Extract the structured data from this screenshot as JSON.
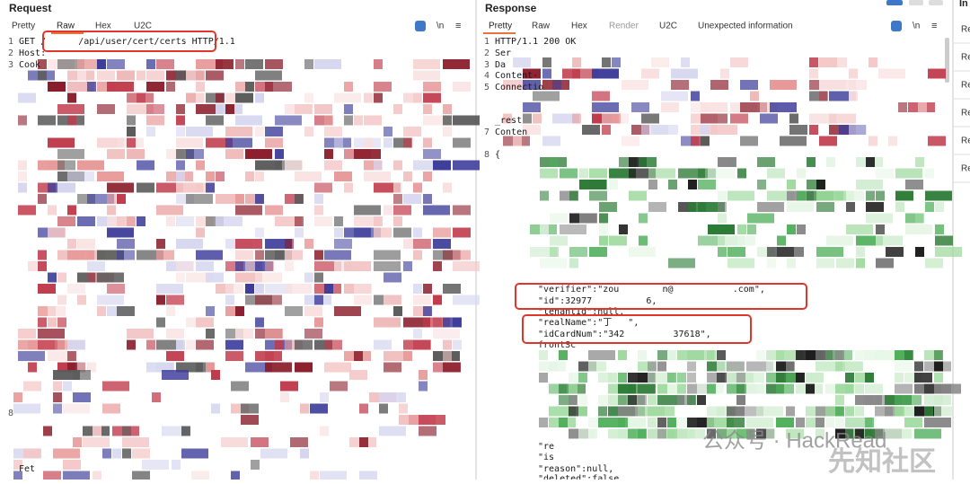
{
  "request": {
    "title": "Request",
    "tabs": [
      "Pretty",
      "Raw",
      "Hex",
      "U2C"
    ],
    "active_tab": 1,
    "lines": [
      {
        "n": "1",
        "text": "GET /      /api/user/cert/certs HTTP/1.1"
      },
      {
        "n": "2",
        "text": "Host:"
      },
      {
        "n": "3",
        "text": "Cook"
      },
      {
        "n": "8",
        "text": ""
      },
      {
        "text": "Fet"
      }
    ]
  },
  "response": {
    "title": "Response",
    "tabs": [
      "Pretty",
      "Raw",
      "Hex",
      "Render",
      "U2C",
      "Unexpected information"
    ],
    "active_tab": 0,
    "lines": [
      {
        "n": "1",
        "text": "HTTP/1.1 200 OK"
      },
      {
        "n": "2",
        "text": "Ser"
      },
      {
        "n": "3",
        "text": "Da"
      },
      {
        "n": "4",
        "text": "Content-"
      },
      {
        "n": "5",
        "text": "Connectio"
      },
      {
        "text": "_rest"
      },
      {
        "n": "7",
        "text": "Conten"
      },
      {
        "n": "8",
        "text": "{"
      },
      {
        "text": "\"verifier\":\"zou        n@           .com\","
      },
      {
        "text": "\"id\":32977          6,"
      },
      {
        "text": "\"tenantId\":null,"
      },
      {
        "text": "\"realName\":\"丁   \","
      },
      {
        "text": "\"idCardNum\":\"342         37618\","
      },
      {
        "text": "frontSc"
      },
      {
        "text": "\"re"
      },
      {
        "text": "\"is"
      },
      {
        "text": "\"reason\":null,"
      },
      {
        "text": "\"deleted\":false"
      }
    ]
  },
  "side_panel": {
    "title": "In",
    "items": [
      "Re",
      "Re",
      "Re",
      "Re",
      "Re",
      "Re"
    ]
  },
  "watermark": {
    "account": "公众号 · HackRead",
    "site": "先知社区"
  }
}
